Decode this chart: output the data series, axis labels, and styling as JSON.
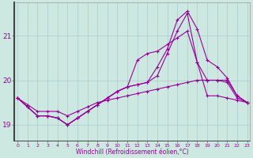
{
  "x": [
    0,
    1,
    2,
    3,
    4,
    5,
    6,
    7,
    8,
    9,
    10,
    11,
    12,
    13,
    14,
    15,
    16,
    17,
    18,
    19,
    20,
    21,
    22,
    23
  ],
  "line_spike": [
    19.6,
    19.4,
    19.2,
    19.2,
    19.15,
    19.0,
    19.15,
    19.3,
    19.45,
    19.6,
    19.75,
    19.85,
    19.9,
    19.95,
    20.1,
    20.6,
    21.1,
    21.5,
    20.4,
    19.65,
    19.65,
    19.6,
    19.55,
    19.5
  ],
  "line_mid": [
    19.6,
    19.4,
    19.2,
    19.2,
    19.15,
    19.0,
    19.15,
    19.3,
    19.45,
    19.6,
    19.75,
    19.85,
    19.9,
    19.95,
    20.3,
    20.7,
    21.35,
    21.55,
    21.15,
    20.45,
    20.3,
    20.05,
    19.65,
    19.5
  ],
  "line_envelope_top": [
    19.6,
    19.4,
    19.2,
    19.2,
    19.15,
    19.0,
    19.15,
    19.3,
    19.45,
    19.6,
    19.75,
    19.85,
    20.45,
    20.6,
    20.65,
    20.8,
    20.95,
    21.1,
    20.4,
    20.0,
    20.0,
    20.0,
    19.65,
    19.5
  ],
  "line_flat": [
    19.6,
    19.45,
    19.3,
    19.3,
    19.3,
    19.2,
    19.3,
    19.4,
    19.5,
    19.55,
    19.6,
    19.65,
    19.7,
    19.75,
    19.8,
    19.85,
    19.9,
    19.95,
    20.0,
    20.0,
    20.0,
    19.95,
    19.6,
    19.5
  ],
  "bg_color": "#cce8e0",
  "grid_color": "#aacccc",
  "line_color": "#990099",
  "ylabel_ticks": [
    19,
    20,
    21
  ],
  "xtick_labels": [
    "0",
    "1",
    "2",
    "3",
    "4",
    "5",
    "6",
    "7",
    "8",
    "9",
    "10",
    "11",
    "12",
    "13",
    "14",
    "15",
    "16",
    "17",
    "18",
    "19",
    "20",
    "21",
    "22",
    "23"
  ],
  "ylim": [
    18.65,
    21.75
  ],
  "xlim": [
    -0.3,
    23.3
  ],
  "xlabel": "Windchill (Refroidissement éolien,°C)"
}
